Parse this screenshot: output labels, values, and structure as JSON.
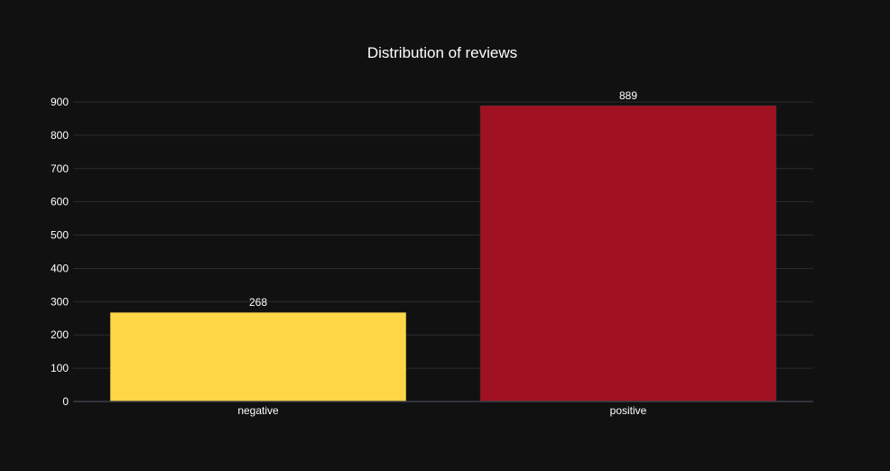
{
  "chart_data": {
    "type": "bar",
    "title": "Distribution of reviews",
    "xlabel": "",
    "ylabel": "",
    "categories": [
      "negative",
      "positive"
    ],
    "values": [
      268,
      889
    ],
    "data_labels": [
      "268",
      "889"
    ],
    "bar_colors": [
      "#FFD645",
      "#A01222"
    ],
    "ylim": [
      0,
      900
    ],
    "yticks": [
      0,
      100,
      200,
      300,
      400,
      500,
      600,
      700,
      800,
      900
    ],
    "ytick_labels": [
      "0",
      "100",
      "200",
      "300",
      "400",
      "500",
      "600",
      "700",
      "800",
      "900"
    ],
    "grid": true,
    "legend": "none"
  },
  "theme": {
    "background": "#111111",
    "plot_background": "#111111",
    "grid_color": "#2a2d33",
    "axis_line_color": "#3b4048",
    "text_color": "#ffffff"
  }
}
